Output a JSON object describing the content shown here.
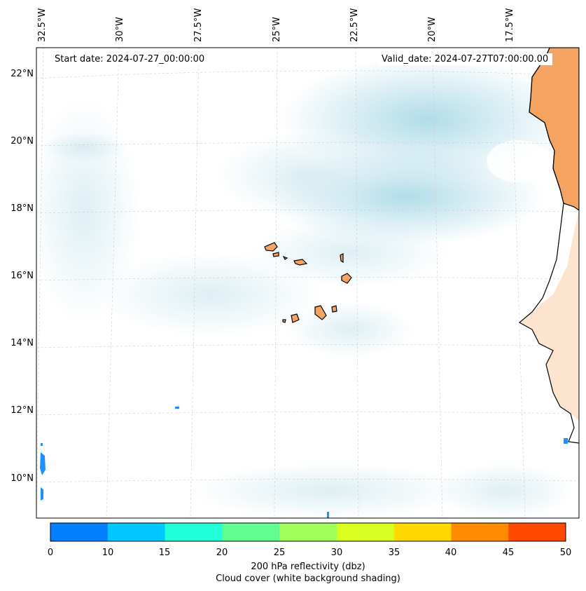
{
  "map": {
    "start_date": "Start date: 2024-07-27_00:00:00",
    "valid_date": "Valid_date: 2024-07-27T07:00:00.00",
    "lon_labels": [
      "32.5°W",
      "30°W",
      "27.5°W",
      "25°W",
      "22.5°W",
      "20°W",
      "17.5°W"
    ],
    "lat_labels": [
      "22°N",
      "20°N",
      "18°N",
      "16°N",
      "14°N",
      "12°N",
      "10°N"
    ],
    "land_color": "#f4a460",
    "cloud_color": "#add8e6"
  },
  "colorbar": {
    "ticks": [
      "0",
      "10",
      "15",
      "20",
      "25",
      "30",
      "35",
      "40",
      "45",
      "50"
    ],
    "colors": [
      "#0080ff",
      "#00c8ff",
      "#20ffd8",
      "#60ff90",
      "#a0ff58",
      "#d8ff20",
      "#ffd800",
      "#ff8c00",
      "#ff4a00"
    ],
    "label_line1": "200 hPa reflectivity (dbz)",
    "label_line2": "Cloud cover (white background shading)"
  }
}
